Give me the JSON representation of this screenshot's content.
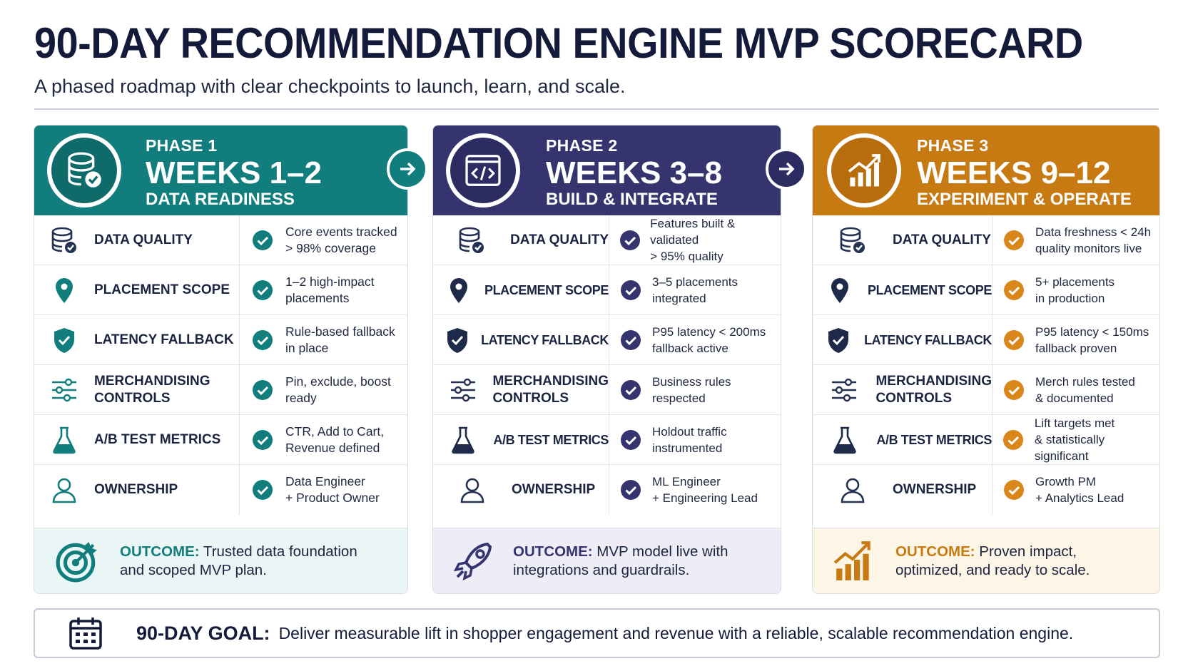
{
  "header": {
    "title": "90-DAY RECOMMENDATION ENGINE MVP SCORECARD",
    "subtitle": "A phased roadmap with clear checkpoints to launch, learn, and scale."
  },
  "colors": {
    "phase1": "#117d7c",
    "phase2": "#36346f",
    "phase3": "#c77a12",
    "navy": "#141b3a"
  },
  "phases": [
    {
      "label": "PHASE 1",
      "weeks": "WEEKS 1–2",
      "name": "DATA READINESS",
      "icon": "database-check-icon",
      "rows": [
        {
          "metric": "DATA QUALITY",
          "desc": [
            "Core events tracked",
            "> 98% coverage"
          ]
        },
        {
          "metric": "PLACEMENT SCOPE",
          "desc": [
            "1–2 high-impact",
            "placements"
          ]
        },
        {
          "metric": "LATENCY FALLBACK",
          "desc": [
            "Rule-based fallback",
            "in place"
          ]
        },
        {
          "metric": [
            "MERCHANDISING",
            "CONTROLS"
          ],
          "desc": [
            "Pin, exclude, boost",
            "ready"
          ]
        },
        {
          "metric": "A/B TEST METRICS",
          "desc": [
            "CTR, Add to Cart,",
            "Revenue defined"
          ]
        },
        {
          "metric": "OWNERSHIP",
          "desc": [
            "Data Engineer",
            "+ Product Owner"
          ]
        }
      ],
      "outcome": {
        "key": "OUTCOME:",
        "text1": " Trusted data foundation",
        "text2": "and scoped MVP plan."
      }
    },
    {
      "label": "PHASE 2",
      "weeks": "WEEKS 3–8",
      "name": "BUILD & INTEGRATE",
      "icon": "code-window-icon",
      "rows": [
        {
          "metric": "DATA QUALITY",
          "desc": [
            "Features built & validated",
            "> 95% quality"
          ]
        },
        {
          "metric": "PLACEMENT SCOPE",
          "desc": [
            "3–5 placements",
            "integrated"
          ]
        },
        {
          "metric": "LATENCY FALLBACK",
          "desc": [
            "P95 latency < 200ms",
            "fallback active"
          ]
        },
        {
          "metric": [
            "MERCHANDISING",
            "CONTROLS"
          ],
          "desc": [
            "Business rules",
            "respected"
          ]
        },
        {
          "metric": "A/B TEST METRICS",
          "desc": [
            "Holdout traffic",
            "instrumented"
          ]
        },
        {
          "metric": "OWNERSHIP",
          "desc": [
            "ML Engineer",
            "+ Engineering Lead"
          ]
        }
      ],
      "outcome": {
        "key": "OUTCOME:",
        "text1": " MVP model live with",
        "text2": "integrations and guardrails."
      }
    },
    {
      "label": "PHASE 3",
      "weeks": "WEEKS 9–12",
      "name": "EXPERIMENT & OPERATE",
      "icon": "growth-chart-icon",
      "rows": [
        {
          "metric": "DATA QUALITY",
          "desc": [
            "Data freshness < 24h",
            "quality monitors live"
          ]
        },
        {
          "metric": "PLACEMENT SCOPE",
          "desc": [
            "5+ placements",
            "in production"
          ]
        },
        {
          "metric": "LATENCY FALLBACK",
          "desc": [
            "P95 latency < 150ms",
            "fallback proven"
          ]
        },
        {
          "metric": [
            "MERCHANDISING",
            "CONTROLS"
          ],
          "desc": [
            "Merch rules tested",
            "& documented"
          ]
        },
        {
          "metric": "A/B TEST METRICS",
          "desc": [
            "Lift targets met",
            "& statistically significant"
          ]
        },
        {
          "metric": "OWNERSHIP",
          "desc": [
            "Growth PM",
            "+ Analytics Lead"
          ]
        }
      ],
      "outcome": {
        "key": "OUTCOME:",
        "text1": " Proven impact,",
        "text2": "optimized, and ready to scale."
      }
    }
  ],
  "goal": {
    "key": "90-DAY GOAL:",
    "text": "Deliver measurable lift in shopper engagement and revenue with a reliable, scalable recommendation engine."
  }
}
